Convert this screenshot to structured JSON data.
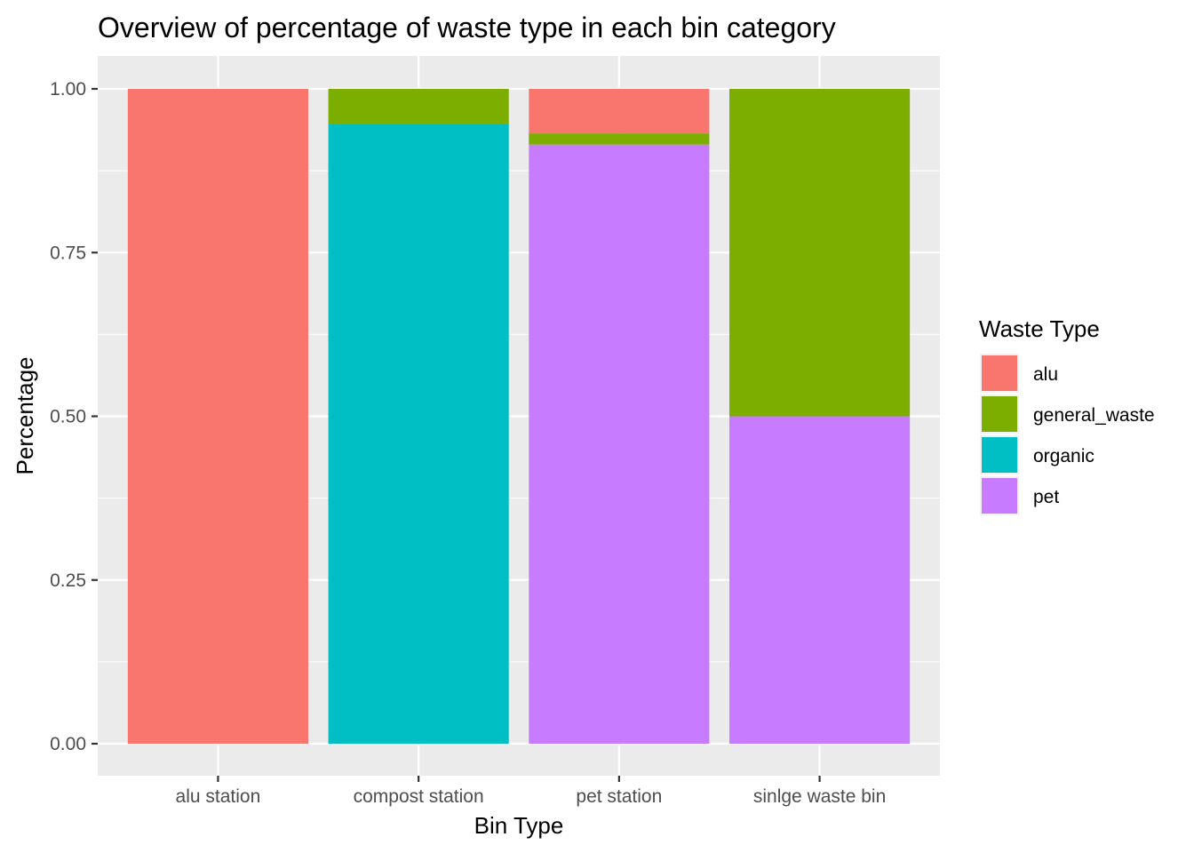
{
  "chart_data": {
    "type": "bar",
    "stacked": true,
    "title": "Overview of percentage of waste type in each bin category",
    "xlabel": "Bin Type",
    "ylabel": "Percentage",
    "categories": [
      "alu station",
      "compost station",
      "pet station",
      "sinlge waste bin"
    ],
    "series": [
      {
        "name": "alu",
        "color": "#F8766D",
        "values": [
          1.0,
          0.0,
          0.068,
          0.0
        ]
      },
      {
        "name": "general_waste",
        "color": "#7CAE00",
        "values": [
          0.0,
          0.053,
          0.017,
          0.5
        ]
      },
      {
        "name": "organic",
        "color": "#00BFC4",
        "values": [
          0.0,
          0.947,
          0.0,
          0.0
        ]
      },
      {
        "name": "pet",
        "color": "#C77CFF",
        "values": [
          0.0,
          0.0,
          0.915,
          0.5
        ]
      }
    ],
    "stack_order": [
      "pet",
      "organic",
      "general_waste",
      "alu"
    ],
    "ylim": [
      0,
      1
    ],
    "yticks": [
      "0.00",
      "0.25",
      "0.50",
      "0.75",
      "1.00"
    ],
    "ytick_values": [
      0,
      0.25,
      0.5,
      0.75,
      1.0
    ],
    "grid": true,
    "panel_background": "#EBEBEB",
    "gridline_color": "#FFFFFF",
    "legend": {
      "title": "Waste Type",
      "position": "right"
    }
  }
}
